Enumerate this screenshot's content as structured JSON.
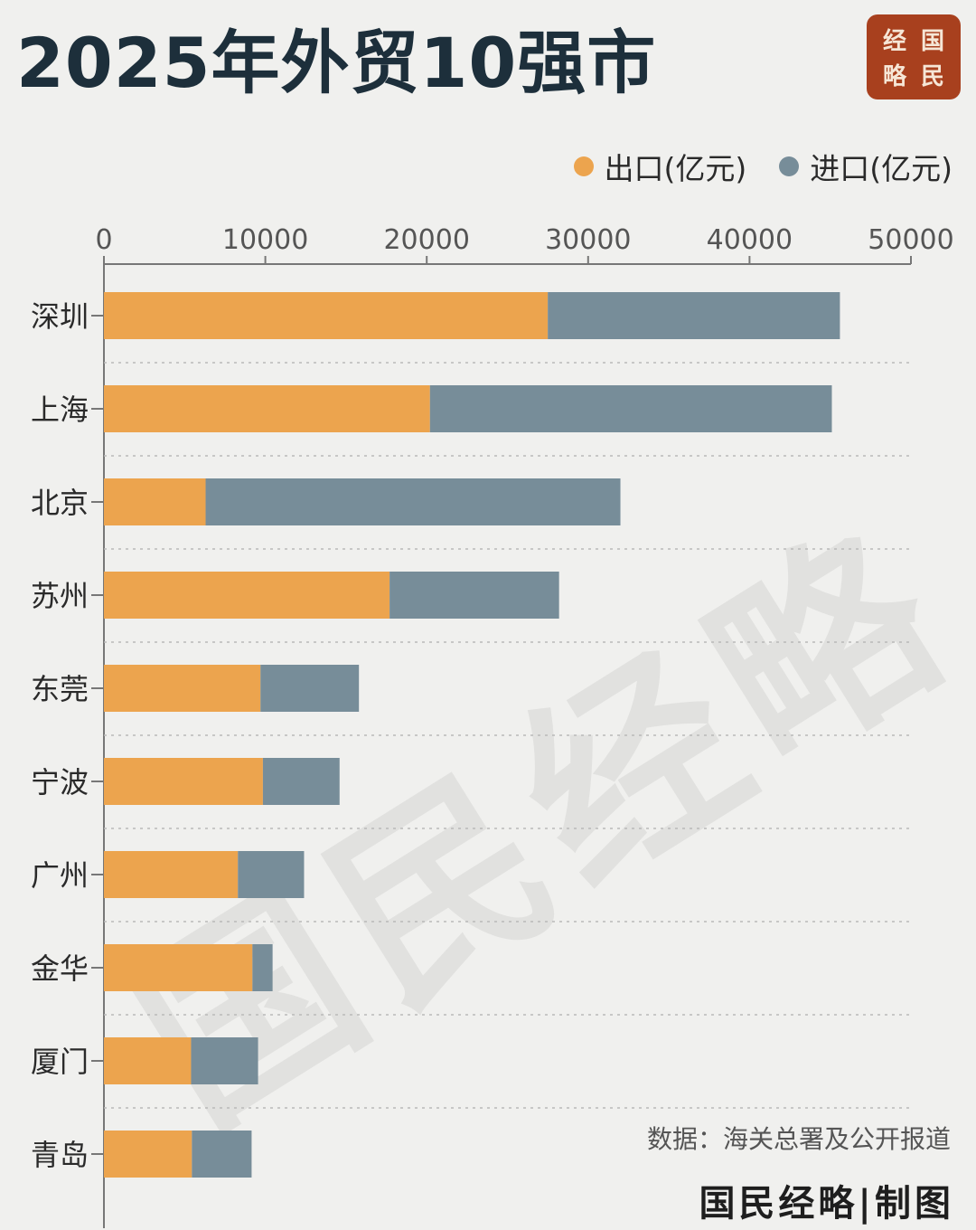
{
  "title": "2025年外贸10强市",
  "logo": {
    "c1": "经",
    "c2": "国",
    "c3": "略",
    "c4": "民"
  },
  "legend": {
    "export_label": "出口(亿元)",
    "import_label": "进口(亿元)"
  },
  "source": "数据：海关总署及公开报道",
  "credit": "国民经略|制图",
  "watermark": "国民经略",
  "colors": {
    "export": "#eca44e",
    "import": "#778d99",
    "background": "#f0f0ee"
  },
  "chart_data": {
    "type": "bar",
    "orientation": "horizontal",
    "stacked": true,
    "categories": [
      "深圳",
      "上海",
      "北京",
      "苏州",
      "东莞",
      "宁波",
      "广州",
      "金华",
      "厦门",
      "青岛"
    ],
    "series": [
      {
        "name": "出口(亿元)",
        "values": [
          27500,
          20200,
          6300,
          17700,
          9700,
          9850,
          8300,
          9200,
          5400,
          5450
        ]
      },
      {
        "name": "进口(亿元)",
        "values": [
          18100,
          24900,
          25700,
          10500,
          6100,
          4750,
          4100,
          1250,
          4150,
          3700
        ]
      }
    ],
    "xlim": [
      0,
      50000
    ],
    "xticks": [
      "0",
      "10000",
      "20000",
      "30000",
      "40000",
      "50000"
    ],
    "axis_position": "top",
    "legend_position": "top-right",
    "grid": "dotted separators between categories"
  }
}
